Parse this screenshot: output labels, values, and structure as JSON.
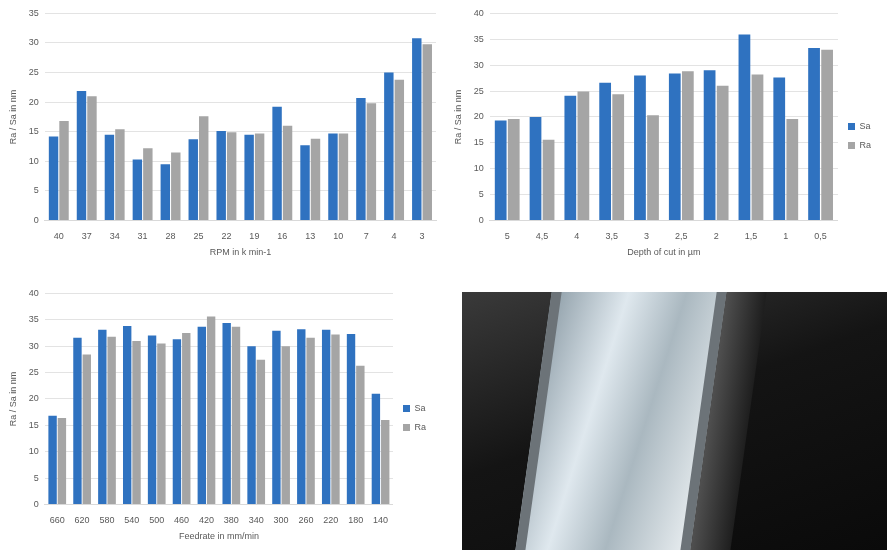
{
  "chart_data": [
    {
      "type": "bar",
      "x_label": "RPM in k min-1",
      "y_label": "Ra / Sa in nm",
      "categories": [
        "40",
        "37",
        "34",
        "31",
        "28",
        "25",
        "22",
        "19",
        "16",
        "13",
        "10",
        "7",
        "4",
        "3"
      ],
      "series": [
        {
          "color": "#2f72c0",
          "values": [
            14.2,
            21.9,
            14.5,
            10.3,
            9.5,
            13.7,
            15.1,
            14.5,
            19.2,
            12.7,
            14.7,
            20.7,
            25.0,
            30.8
          ]
        },
        {
          "color": "#a5a5a5",
          "values": [
            16.8,
            21.0,
            15.4,
            12.2,
            11.5,
            17.6,
            14.9,
            14.7,
            16.0,
            13.8,
            14.7,
            19.8,
            23.8,
            29.8
          ]
        }
      ],
      "ylim": [
        0,
        35
      ],
      "yticks": [
        0,
        5,
        10,
        15,
        20,
        25,
        30,
        35
      ],
      "grid": true
    },
    {
      "type": "bar",
      "x_label": "Depth of cut in µm",
      "y_label": "Ra / Sa in nm",
      "categories": [
        "5",
        "4,5",
        "4",
        "3,5",
        "3",
        "2,5",
        "2",
        "1,5",
        "1",
        "0,5"
      ],
      "series": [
        {
          "name": "Sa",
          "color": "#2f72c0",
          "values": [
            19.3,
            20.0,
            24.1,
            26.6,
            28.0,
            28.4,
            29.0,
            35.9,
            27.6,
            33.3
          ]
        },
        {
          "name": "Ra",
          "color": "#a5a5a5",
          "values": [
            19.6,
            15.6,
            24.9,
            24.4,
            20.3,
            28.8,
            26.0,
            28.2,
            19.6,
            33.0
          ]
        }
      ],
      "ylim": [
        0,
        40
      ],
      "yticks": [
        0,
        5,
        10,
        15,
        20,
        25,
        30,
        35,
        40
      ],
      "grid": true,
      "legend": "right"
    },
    {
      "type": "bar",
      "x_label": "Feedrate in mm/min",
      "y_label": "Ra / Sa in nm",
      "categories": [
        "660",
        "620",
        "580",
        "540",
        "500",
        "460",
        "420",
        "380",
        "340",
        "300",
        "260",
        "220",
        "180",
        "140"
      ],
      "series": [
        {
          "name": "Sa",
          "color": "#2f72c0",
          "values": [
            16.8,
            31.6,
            33.1,
            33.8,
            32.0,
            31.3,
            33.7,
            34.4,
            30.0,
            32.9,
            33.2,
            33.1,
            32.3,
            21.0
          ]
        },
        {
          "name": "Ra",
          "color": "#a5a5a5",
          "values": [
            16.4,
            28.4,
            31.8,
            31.0,
            30.5,
            32.5,
            35.6,
            33.7,
            27.4,
            30.0,
            31.6,
            32.2,
            26.3,
            16.0
          ]
        }
      ],
      "ylim": [
        0,
        40
      ],
      "yticks": [
        0,
        5,
        10,
        15,
        20,
        25,
        30,
        35,
        40
      ],
      "grid": true,
      "legend": "right"
    }
  ]
}
